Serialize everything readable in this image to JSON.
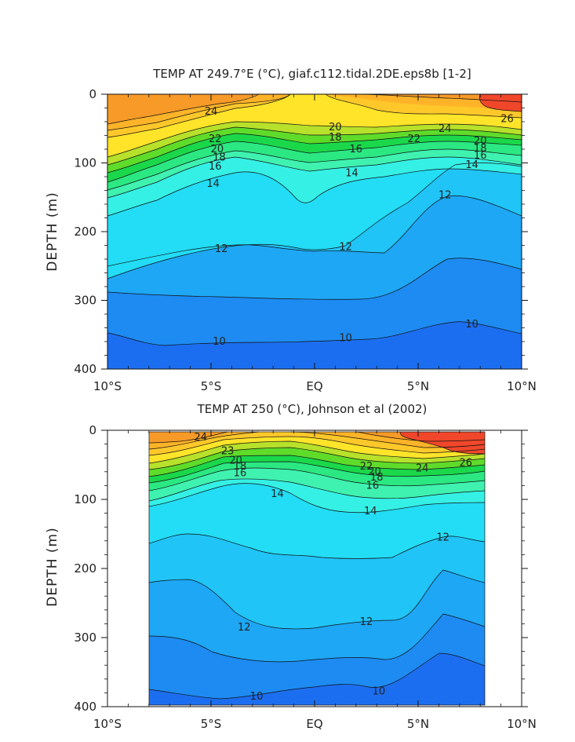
{
  "chart_data": [
    {
      "type": "contour",
      "title": "TEMP AT 249.7°E (°C), giaf.c112.tidal.2DE.eps8b [1-2]",
      "xlabel": "",
      "ylabel": "DEPTH (m)",
      "xlim": [
        -10,
        10
      ],
      "ylim": [
        400,
        0
      ],
      "x_ticks": [
        -10,
        -5,
        0,
        5,
        10
      ],
      "x_tick_labels": [
        "10°S",
        "5°S",
        "EQ",
        "5°N",
        "10°N"
      ],
      "y_ticks": [
        0,
        100,
        200,
        300,
        400
      ],
      "y_tick_labels": [
        "0",
        "100",
        "200",
        "300",
        "400"
      ],
      "data_extent_x": [
        -10,
        10
      ],
      "data_extent_y": [
        0,
        400
      ],
      "contour_levels_labeled": [
        {
          "value": "24",
          "lat": -5,
          "depth": 25
        },
        {
          "value": "22",
          "lat": -4.8,
          "depth": 65
        },
        {
          "value": "20",
          "lat": -4.7,
          "depth": 80
        },
        {
          "value": "18",
          "lat": -4.6,
          "depth": 92
        },
        {
          "value": "16",
          "lat": -4.8,
          "depth": 105
        },
        {
          "value": "14",
          "lat": -4.9,
          "depth": 130
        },
        {
          "value": "20",
          "lat": 1.0,
          "depth": 48
        },
        {
          "value": "18",
          "lat": 1.0,
          "depth": 63
        },
        {
          "value": "16",
          "lat": 2.0,
          "depth": 80
        },
        {
          "value": "14",
          "lat": 1.8,
          "depth": 115
        },
        {
          "value": "22",
          "lat": 4.8,
          "depth": 65
        },
        {
          "value": "24",
          "lat": 6.3,
          "depth": 50
        },
        {
          "value": "26",
          "lat": 9.3,
          "depth": 36
        },
        {
          "value": "20",
          "lat": 8.0,
          "depth": 68
        },
        {
          "value": "18",
          "lat": 8.0,
          "depth": 79
        },
        {
          "value": "16",
          "lat": 8.0,
          "depth": 89
        },
        {
          "value": "14",
          "lat": 7.6,
          "depth": 103
        },
        {
          "value": "12",
          "lat": 6.3,
          "depth": 147
        },
        {
          "value": "12",
          "lat": -4.5,
          "depth": 225
        },
        {
          "value": "12",
          "lat": 1.5,
          "depth": 222
        },
        {
          "value": "10",
          "lat": -4.6,
          "depth": 360
        },
        {
          "value": "10",
          "lat": 1.5,
          "depth": 355
        },
        {
          "value": "10",
          "lat": 7.6,
          "depth": 335
        }
      ]
    },
    {
      "type": "contour",
      "title": "TEMP AT 250 (°C), Johnson et al (2002)",
      "xlabel": "",
      "ylabel": "DEPTH (m)",
      "xlim": [
        -10,
        10
      ],
      "ylim": [
        400,
        0
      ],
      "x_ticks": [
        -10,
        -5,
        0,
        5,
        10
      ],
      "x_tick_labels": [
        "10°S",
        "5°S",
        "EQ",
        "5°N",
        "10°N"
      ],
      "y_ticks": [
        0,
        100,
        200,
        300,
        400
      ],
      "y_tick_labels": [
        "0",
        "100",
        "200",
        "300",
        "400"
      ],
      "data_extent_x": [
        -8,
        8.2
      ],
      "data_extent_y": [
        5,
        385
      ],
      "contour_levels_labeled": [
        {
          "value": "24",
          "lat": -5.5,
          "depth": 10
        },
        {
          "value": "23",
          "lat": -4.2,
          "depth": 30
        },
        {
          "value": "20",
          "lat": -3.8,
          "depth": 44
        },
        {
          "value": "18",
          "lat": -3.6,
          "depth": 52
        },
        {
          "value": "16",
          "lat": -3.6,
          "depth": 62
        },
        {
          "value": "14",
          "lat": -1.8,
          "depth": 92
        },
        {
          "value": "22",
          "lat": 2.5,
          "depth": 52
        },
        {
          "value": "20",
          "lat": 2.9,
          "depth": 60
        },
        {
          "value": "18",
          "lat": 3.0,
          "depth": 68
        },
        {
          "value": "16",
          "lat": 2.8,
          "depth": 80
        },
        {
          "value": "24",
          "lat": 5.2,
          "depth": 55
        },
        {
          "value": "26",
          "lat": 7.3,
          "depth": 47
        },
        {
          "value": "14",
          "lat": 2.7,
          "depth": 117
        },
        {
          "value": "12",
          "lat": 6.2,
          "depth": 155
        },
        {
          "value": "12",
          "lat": -3.4,
          "depth": 285
        },
        {
          "value": "12",
          "lat": 2.5,
          "depth": 277
        },
        {
          "value": "10",
          "lat": -2.8,
          "depth": 385
        },
        {
          "value": "10",
          "lat": 3.1,
          "depth": 378
        }
      ]
    }
  ]
}
